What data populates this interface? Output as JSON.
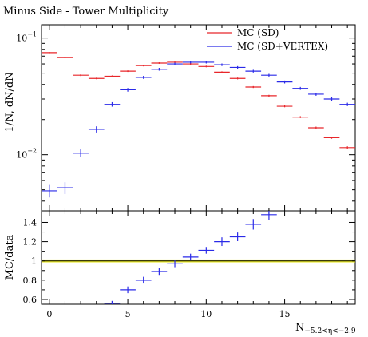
{
  "chart_data": [
    {
      "type": "scatter",
      "panel": "main",
      "title": "Minus Side - Tower Multiplicity",
      "ylabel": "1/N_{ev} dN/dN",
      "ylabel_text": "1/N, dN/dN",
      "yscale": "log",
      "ylim": [
        0.0033,
        0.13
      ],
      "xlim": [
        -0.5,
        19.5
      ],
      "yticks": [
        {
          "value": 0.01,
          "label": "10",
          "exp": "−2"
        },
        {
          "value": 0.1,
          "label": "10",
          "exp": "−1"
        }
      ],
      "legend": {
        "position": "top-right"
      },
      "series": [
        {
          "name": "MC (SD)",
          "color": "#e8262a",
          "x": [
            0,
            1,
            2,
            3,
            4,
            5,
            6,
            7,
            8,
            9,
            10,
            11,
            12,
            13,
            14,
            15,
            16,
            17,
            18,
            19
          ],
          "y": [
            0.075,
            0.068,
            0.048,
            0.045,
            0.047,
            0.052,
            0.058,
            0.061,
            0.062,
            0.06,
            0.057,
            0.051,
            0.045,
            0.038,
            0.032,
            0.026,
            0.021,
            0.017,
            0.014,
            0.0115
          ],
          "yerr": [
            0.001,
            0.001,
            0.0008,
            0.0007,
            0.0008,
            0.0008,
            0.0009,
            0.0009,
            0.0009,
            0.0009,
            0.0009,
            0.0008,
            0.0008,
            0.0007,
            0.0006,
            0.0005,
            0.0004,
            0.0004,
            0.0003,
            0.0003
          ]
        },
        {
          "name": "MC (SD+VERTEX)",
          "color": "#2a2ae8",
          "x": [
            0,
            1,
            2,
            3,
            4,
            5,
            6,
            7,
            8,
            9,
            10,
            11,
            12,
            13,
            14,
            15,
            16,
            17,
            18,
            19
          ],
          "y": [
            0.0049,
            0.0052,
            0.0103,
            0.0165,
            0.027,
            0.036,
            0.046,
            0.054,
            0.06,
            0.062,
            0.062,
            0.059,
            0.056,
            0.052,
            0.048,
            0.042,
            0.037,
            0.033,
            0.03,
            0.027
          ],
          "yerr": [
            0.0006,
            0.0006,
            0.0008,
            0.001,
            0.0012,
            0.0013,
            0.0014,
            0.0015,
            0.0015,
            0.0015,
            0.0015,
            0.0015,
            0.0014,
            0.0014,
            0.0013,
            0.0012,
            0.0011,
            0.001,
            0.001,
            0.0009
          ]
        }
      ]
    },
    {
      "type": "scatter",
      "panel": "ratio",
      "ylabel": "MC/data",
      "xlabel": "N_{−5.2<η<−2.9}",
      "xlabel_main": "N",
      "xlabel_sub": "−5.2<η<−2.9",
      "ylim": [
        0.55,
        1.52
      ],
      "xlim": [
        -0.5,
        19.5
      ],
      "xticks": [
        0,
        5,
        10,
        15
      ],
      "yticks": [
        0.6,
        0.8,
        1.0,
        1.2,
        1.4
      ],
      "ytick_labels": [
        "0.6",
        "0.8",
        "1",
        "1.2",
        "1.4"
      ],
      "reference": {
        "value": 1.0,
        "band": [
          0.985,
          1.015
        ],
        "color": "#e6e600"
      },
      "series": [
        {
          "name": "MC (SD+VERTEX)",
          "color": "#2a2ae8",
          "x": [
            4,
            5,
            6,
            7,
            8,
            9,
            10,
            11,
            12,
            13,
            14
          ],
          "y": [
            0.56,
            0.7,
            0.8,
            0.89,
            0.97,
            1.04,
            1.11,
            1.2,
            1.25,
            1.38,
            1.48
          ],
          "yerr": [
            0.01,
            0.02,
            0.02,
            0.02,
            0.02,
            0.02,
            0.02,
            0.03,
            0.03,
            0.04,
            0.04
          ]
        }
      ]
    }
  ]
}
